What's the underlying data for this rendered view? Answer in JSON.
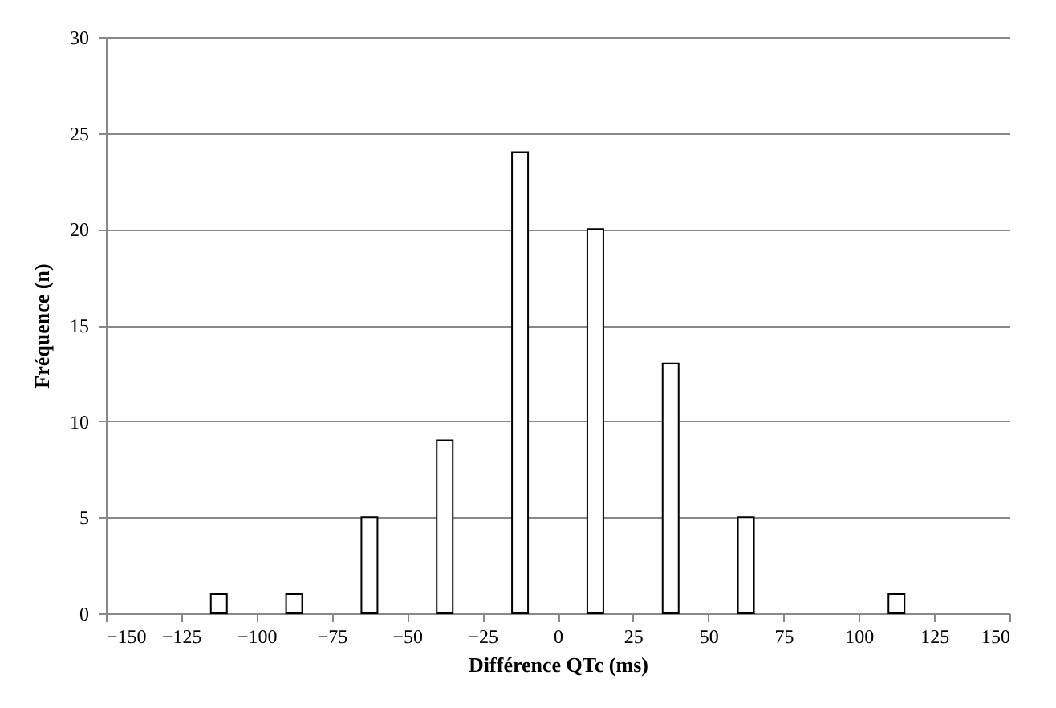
{
  "chart_data": {
    "type": "bar",
    "xlabel": "Différence QTc (ms)",
    "ylabel": "Fréquence (n)",
    "x": [
      -112.5,
      -87.5,
      -62.5,
      -37.5,
      -12.5,
      12.5,
      37.5,
      62.5,
      112.5
    ],
    "values": [
      1,
      1,
      5,
      9,
      24,
      20,
      13,
      5,
      1
    ],
    "color": "#ffffff",
    "xlim": [
      -150,
      150
    ],
    "xticks": [
      -150,
      -125,
      -100,
      -75,
      -50,
      -25,
      0,
      25,
      50,
      75,
      100,
      125,
      150
    ],
    "ylim": [
      0,
      30
    ],
    "yticks": [
      0,
      5,
      10,
      15,
      20,
      25,
      30
    ],
    "grid": "y"
  }
}
